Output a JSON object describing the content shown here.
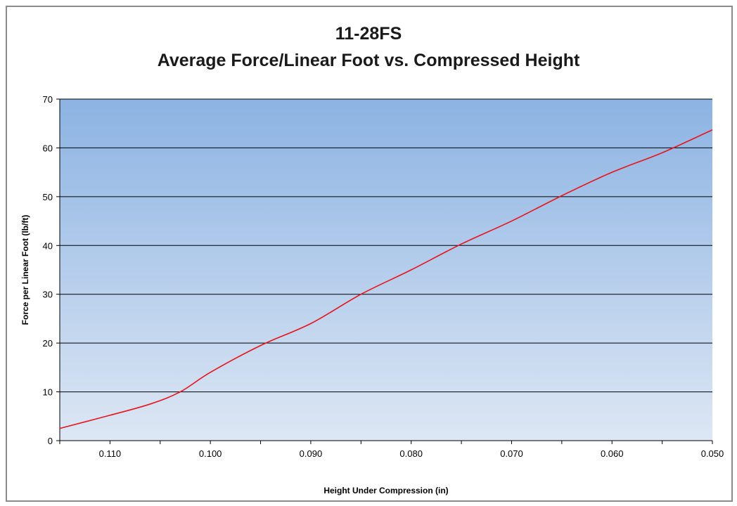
{
  "chart_data": {
    "type": "line",
    "title": "11-28FS",
    "subtitle": "Average Force/Linear Foot vs. Compressed Height",
    "xlabel": "Height Under Compression (in)",
    "ylabel": "Force per Linear Foot (lb/ft)",
    "xlim": [
      0.115,
      0.05
    ],
    "x_reversed": true,
    "ylim": [
      0,
      70
    ],
    "xticks": [
      "0.110",
      "0.100",
      "0.090",
      "0.080",
      "0.070",
      "0.060",
      "0.050"
    ],
    "yticks": [
      "0",
      "10",
      "20",
      "30",
      "40",
      "50",
      "60",
      "70"
    ],
    "grid": "horizontal",
    "legend": "none",
    "background": "gradient blue",
    "series": [
      {
        "color": "#e8141b",
        "x": [
          0.115,
          0.11,
          0.106,
          0.103,
          0.1,
          0.095,
          0.09,
          0.085,
          0.08,
          0.075,
          0.07,
          0.065,
          0.06,
          0.055,
          0.05
        ],
        "y": [
          2.5,
          5.2,
          7.5,
          10.0,
          14.0,
          19.5,
          24.0,
          30.0,
          35.0,
          40.3,
          45.0,
          50.2,
          55.0,
          59.0,
          63.7
        ]
      }
    ]
  },
  "colors": {
    "plot_top": "#8cb3e3",
    "plot_bottom": "#dde7f4",
    "grid": "#000000",
    "line": "#e8141b"
  }
}
